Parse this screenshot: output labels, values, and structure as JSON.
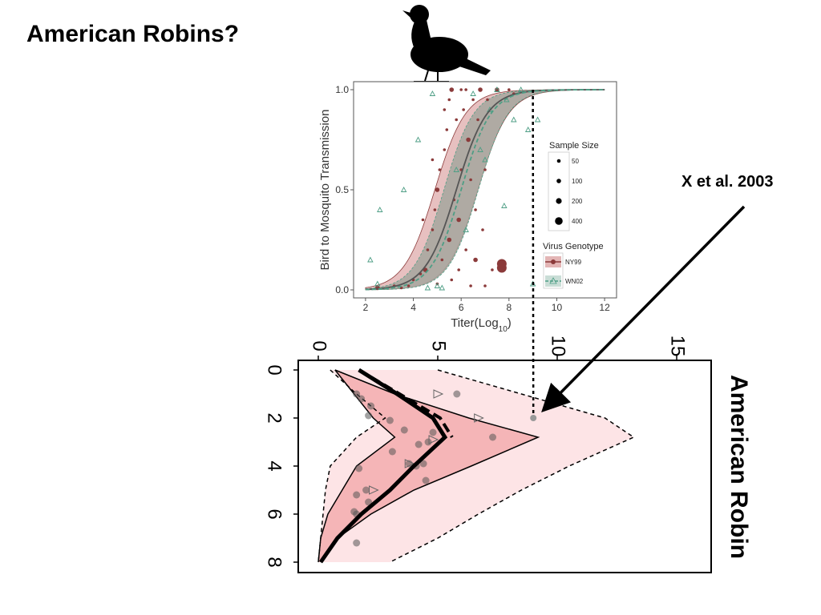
{
  "slide": {
    "title": "American Robins?",
    "citation": "X et al. 2003"
  },
  "colors": {
    "ny99": "#8b3a3a",
    "wn02": "#4e9e85",
    "ribbon": "#a5a69d",
    "ribbon_edge": "#e3b5b5",
    "inner_band": "#f5b5b7",
    "outer_band": "#fde4e6"
  },
  "chart_data": [
    {
      "type": "scatter",
      "title": "",
      "xlabel_main": "Titer(Log",
      "xlabel_sub": "10",
      "xlabel_close": ")",
      "ylabel": "Bird to Mosquito Transmission",
      "xlim": [
        1.5,
        12.5
      ],
      "ylim": [
        -0.04,
        1.04
      ],
      "xticks": [
        "2",
        "4",
        "6",
        "8",
        "10",
        "12"
      ],
      "yticks": [
        "0.0",
        "0.5",
        "1.0"
      ],
      "legend_size_title": "Sample Size",
      "legend_size": [
        "50",
        "100",
        "200",
        "400"
      ],
      "legend_genotype_title": "Virus Genotype",
      "legend_genotype": [
        "NY99",
        "WN02"
      ],
      "curves": {
        "ny99": {
          "midpoint": 5.8,
          "slope": 1.55
        },
        "wn02": {
          "midpoint": 6.0,
          "slope": 1.6
        },
        "band_offset": 0.9
      },
      "series": [
        {
          "name": "NY99",
          "marker": "circle",
          "points": [
            [
              2.5,
              0.01
            ],
            [
              3.2,
              0.02
            ],
            [
              3.8,
              0.02
            ],
            [
              4.0,
              0.05
            ],
            [
              4.3,
              0.08
            ],
            [
              4.5,
              0.1
            ],
            [
              4.6,
              0.2
            ],
            [
              4.8,
              0.3
            ],
            [
              4.9,
              0.4
            ],
            [
              5.0,
              0.03
            ],
            [
              5.0,
              0.5
            ],
            [
              5.1,
              0.6
            ],
            [
              5.2,
              0.15
            ],
            [
              5.3,
              0.7
            ],
            [
              5.4,
              0.8
            ],
            [
              5.5,
              0.25
            ],
            [
              5.5,
              0.95
            ],
            [
              5.6,
              0.05
            ],
            [
              5.7,
              0.45
            ],
            [
              5.8,
              0.85
            ],
            [
              5.9,
              0.35
            ],
            [
              6.0,
              1.0
            ],
            [
              6.0,
              0.6
            ],
            [
              6.1,
              0.9
            ],
            [
              6.2,
              0.2
            ],
            [
              6.3,
              0.75
            ],
            [
              6.4,
              0.55
            ],
            [
              6.5,
              0.95
            ],
            [
              6.6,
              0.4
            ],
            [
              6.7,
              0.85
            ],
            [
              6.8,
              1.0
            ],
            [
              6.9,
              0.3
            ],
            [
              7.0,
              0.6
            ],
            [
              7.1,
              0.95
            ],
            [
              7.3,
              0.1
            ],
            [
              7.5,
              1.0
            ],
            [
              7.7,
              0.13
            ],
            [
              7.7,
              0.11
            ],
            [
              8.0,
              1.0
            ],
            [
              8.2,
              0.98
            ],
            [
              5.6,
              1.0
            ],
            [
              6.2,
              1.0
            ],
            [
              4.8,
              0.65
            ],
            [
              5.3,
              0.9
            ],
            [
              4.4,
              0.35
            ],
            [
              6.6,
              0.15
            ],
            [
              7.0,
              0.02
            ],
            [
              3.5,
              0.01
            ],
            [
              5.9,
              0.1
            ],
            [
              6.4,
              0.02
            ]
          ]
        },
        {
          "name": "WN02",
          "marker": "triangle",
          "points": [
            [
              2.2,
              0.15
            ],
            [
              2.6,
              0.4
            ],
            [
              3.6,
              0.5
            ],
            [
              4.2,
              0.75
            ],
            [
              4.8,
              0.98
            ],
            [
              5.2,
              0.01
            ],
            [
              5.8,
              0.6
            ],
            [
              6.2,
              0.3
            ],
            [
              6.5,
              0.98
            ],
            [
              6.8,
              0.7
            ],
            [
              7.0,
              0.65
            ],
            [
              7.5,
              1.0
            ],
            [
              7.8,
              0.42
            ],
            [
              8.2,
              0.85
            ],
            [
              8.5,
              1.0
            ],
            [
              8.8,
              0.8
            ],
            [
              9.0,
              0.03
            ],
            [
              9.2,
              0.85
            ],
            [
              2.5,
              0.03
            ],
            [
              4.6,
              0.01
            ],
            [
              5.0,
              0.02
            ],
            [
              7.2,
              0.9
            ],
            [
              7.9,
              0.95
            ]
          ]
        }
      ]
    },
    {
      "type": "area",
      "title": "American Robin",
      "orientation": "rotated",
      "ylim": [
        0,
        15
      ],
      "yticks": [
        "0",
        "5",
        "10",
        "15"
      ],
      "xlim": [
        0,
        8
      ],
      "xticks": [
        "0",
        "2",
        "4",
        "6",
        "8"
      ],
      "day": [
        0,
        1,
        2,
        2.8,
        4,
        5,
        6,
        7,
        8
      ],
      "mean_solid": [
        1.7,
        3.3,
        4.8,
        5.3,
        4.0,
        3.0,
        1.8,
        0.8,
        0.1
      ],
      "mean_dashed": [
        1.7,
        3.4,
        5.1,
        5.6
      ],
      "inner_lower": [
        0.7,
        1.5,
        2.3,
        3.2,
        1.6,
        1.0,
        0.4,
        0.1,
        0.0
      ],
      "inner_upper": [
        0.7,
        3.2,
        6.3,
        9.2,
        6.4,
        4.0,
        2.2,
        0.8,
        0.1
      ],
      "outer_lower": [
        0.5,
        1.6,
        2.8,
        1.6,
        0.5,
        0.3,
        0.2,
        0.1,
        0.0
      ],
      "outer_upper": [
        5.0,
        8.5,
        12.0,
        13.2,
        10.5,
        8.5,
        6.7,
        5.0,
        3.0
      ],
      "points": [
        [
          1,
          1.6
        ],
        [
          1.2,
          1.8
        ],
        [
          1.5,
          2.2
        ],
        [
          1.9,
          2.1
        ],
        [
          2.1,
          3.0
        ],
        [
          2.5,
          3.6
        ],
        [
          3.0,
          4.6
        ],
        [
          3.4,
          3.1
        ],
        [
          3.9,
          3.8
        ],
        [
          4.0,
          4.1
        ],
        [
          4.1,
          1.7
        ],
        [
          5.0,
          2.0
        ],
        [
          5.2,
          1.6
        ],
        [
          5.5,
          2.1
        ],
        [
          5.9,
          1.5
        ],
        [
          6.0,
          1.6
        ],
        [
          2.8,
          7.3
        ],
        [
          3.1,
          4.2
        ],
        [
          4.6,
          4.5
        ],
        [
          7.2,
          1.6
        ],
        [
          3.9,
          4.4
        ],
        [
          2.6,
          4.8
        ],
        [
          1.0,
          5.8
        ]
      ],
      "triangles": [
        [
          1.0,
          5.0
        ],
        [
          2.0,
          6.7
        ],
        [
          2.9,
          4.8
        ],
        [
          3.9,
          3.8
        ],
        [
          5.0,
          2.3
        ]
      ],
      "highlight_point": {
        "day": 2.0,
        "titer": 9.0
      }
    }
  ]
}
